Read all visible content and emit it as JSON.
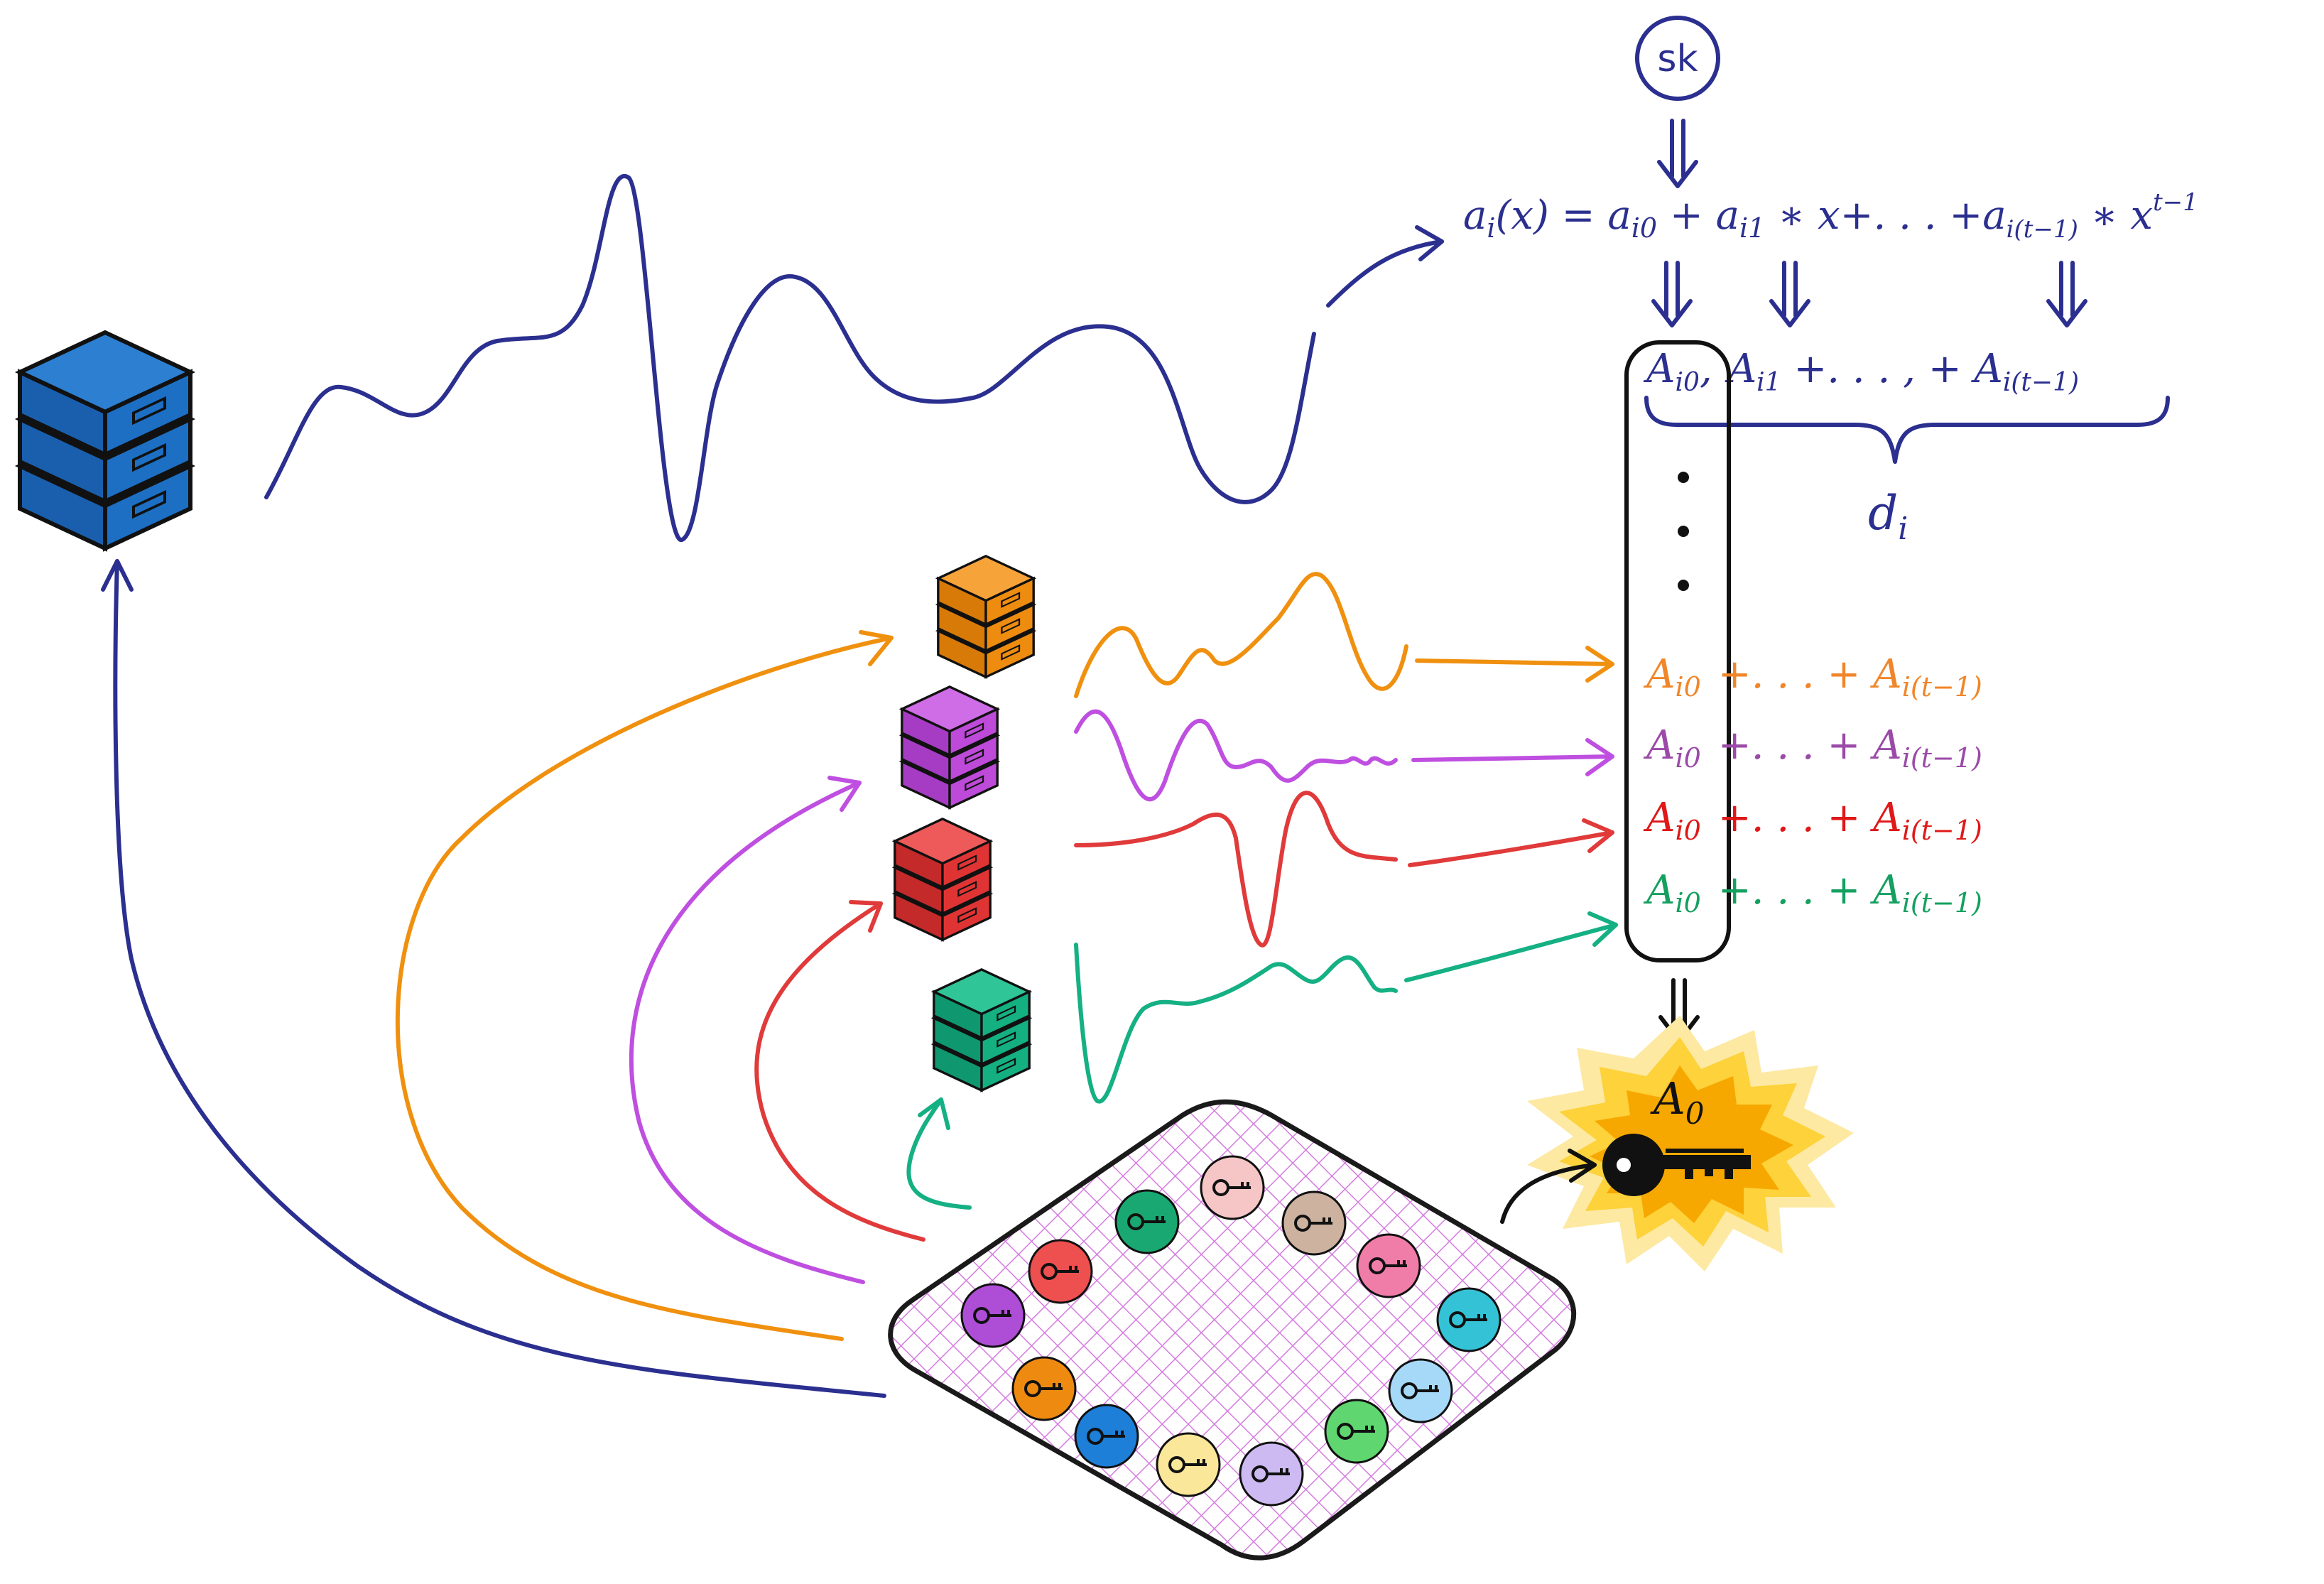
{
  "colors": {
    "navy": "#2b2f8f",
    "orange": "#f0900f",
    "purple": "#bf4fe0",
    "red": "#e03a3a",
    "green": "#15b083",
    "server_blue": "#1d6fc4",
    "server_orange": "#ee8c10",
    "server_purple": "#bd4ad8",
    "server_red": "#e03434",
    "server_green": "#14b082",
    "mesh": "#d57be0",
    "burst_outer": "#fde9a2",
    "burst_mid": "#fdd23a",
    "burst_inner": "#f7a800"
  },
  "sk_label": "sk",
  "polynomial": {
    "lhs": "a",
    "lhs_sub": "i",
    "lhs_arg": "(x) = ",
    "t0": "a",
    "t0_sub": "i0",
    "plus1": " + ",
    "t1": "a",
    "t1_sub": "i1",
    "times_x": " ∗ x+. . . +",
    "tl": "a",
    "tl_sub": "i(t−1)",
    "times_x2": " ∗ x",
    "exp": "t−1"
  },
  "commitments": {
    "A0": "A",
    "A0_sub": "i0",
    "comma": ",",
    "A1": "A",
    "A1_sub": "i1",
    "mid": " +. . . , + ",
    "Al": "A",
    "Al_sub": "i(t−1)"
  },
  "brace_label": "d",
  "brace_label_sub": "i",
  "rows": [
    {
      "A": "A",
      "sub1": "i0",
      "mid": "+. . . + ",
      "A2": "A",
      "sub2": "i(t−1)",
      "color": "#f0862a"
    },
    {
      "A": "A",
      "sub1": "i0",
      "mid": "+. . . + ",
      "A2": "A",
      "sub2": "i(t−1)",
      "color": "#9b4aa8"
    },
    {
      "A": "A",
      "sub1": "i0",
      "mid": "+. . . + ",
      "A2": "A",
      "sub2": "i(t−1)",
      "color": "#e01818"
    },
    {
      "A": "A",
      "sub1": "i0",
      "mid": "+. . . + ",
      "A2": "A",
      "sub2": "i(t−1)",
      "color": "#15a060"
    }
  ],
  "result": {
    "A": "A",
    "sub": "0"
  },
  "key_colors": [
    "#f6c6c6",
    "#ccb29f",
    "#f07da8",
    "#34c3d6",
    "#a6d9f7",
    "#5fd66f",
    "#cdbaf2",
    "#fbe79a",
    "#1d7fd8",
    "#ee8a10",
    "#ae4ed6",
    "#ee4f4f",
    "#1aa872"
  ]
}
